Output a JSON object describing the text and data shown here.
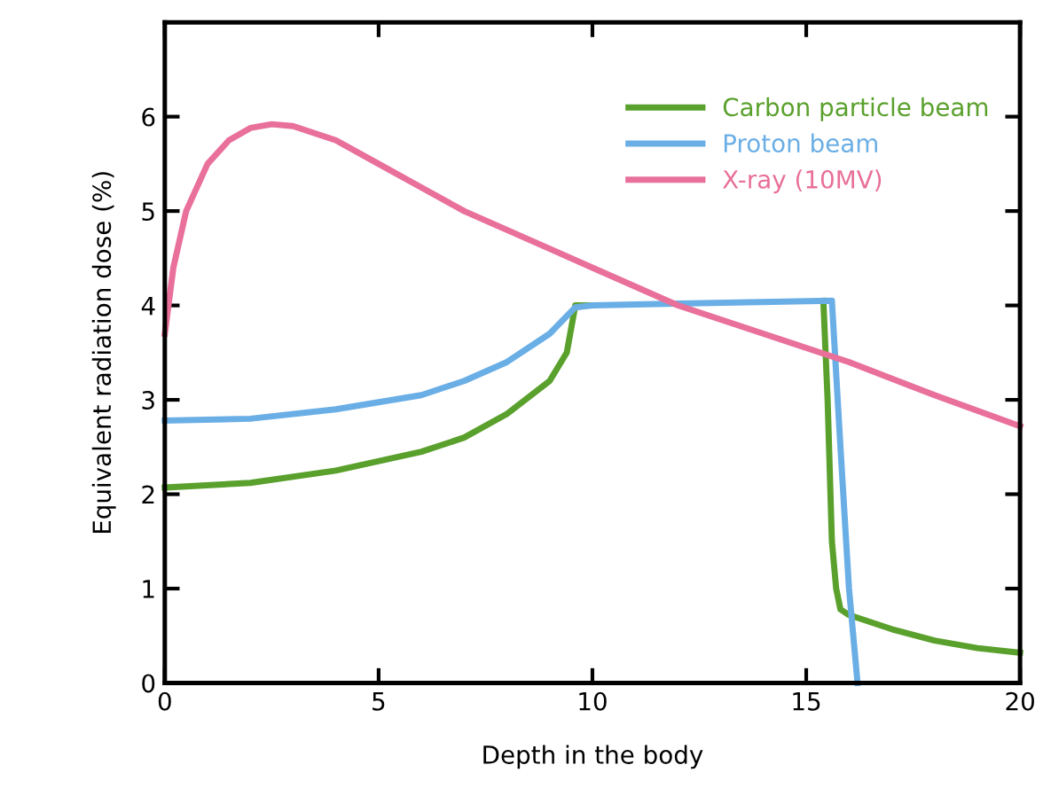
{
  "chart_data": {
    "type": "line",
    "xlabel": "Depth in the body",
    "ylabel": "Equivalent radiation dose (%)",
    "xlim": [
      0,
      20
    ],
    "xticks": [
      0,
      5,
      10,
      15,
      20
    ],
    "ylim": [
      0,
      7
    ],
    "yticks": [
      0,
      1,
      2,
      3,
      4,
      5,
      6
    ],
    "grid": false,
    "legend": "top right",
    "marker": "none",
    "line_style": "solid",
    "series": [
      {
        "name": "Carbon particle beam",
        "color": "#5aa02c",
        "x": [
          0,
          2,
          4,
          6,
          7,
          8,
          9,
          9.4,
          9.6,
          10,
          12,
          15.4,
          15.5,
          15.6,
          15.7,
          15.8,
          16,
          17,
          18,
          19,
          20
        ],
        "values": [
          2.07,
          2.12,
          2.25,
          2.45,
          2.6,
          2.85,
          3.2,
          3.5,
          4.0,
          4.0,
          null,
          4.05,
          3.0,
          1.5,
          1.0,
          0.78,
          0.72,
          0.57,
          0.45,
          0.37,
          0.32
        ]
      },
      {
        "name": "Proton beam",
        "color": "#6aaee6",
        "x": [
          0,
          2,
          4,
          6,
          7,
          8,
          9,
          9.6,
          10,
          12,
          15.6,
          15.8,
          16,
          16.2
        ],
        "values": [
          2.78,
          2.8,
          2.9,
          3.05,
          3.2,
          3.4,
          3.7,
          3.98,
          4.0,
          4.02,
          4.05,
          2.5,
          1.0,
          0
        ]
      },
      {
        "name": "X-ray (10MV)",
        "color": "#e8709a",
        "x": [
          0,
          0.2,
          0.5,
          1,
          1.5,
          2,
          2.5,
          3,
          4,
          5,
          6,
          7,
          8,
          9,
          10,
          12,
          14,
          16,
          18,
          20
        ],
        "values": [
          3.7,
          4.4,
          5.0,
          5.5,
          5.75,
          5.88,
          5.92,
          5.9,
          5.75,
          5.5,
          5.25,
          5.0,
          4.8,
          4.6,
          4.4,
          4.0,
          3.7,
          3.4,
          3.05,
          2.72
        ]
      }
    ]
  }
}
